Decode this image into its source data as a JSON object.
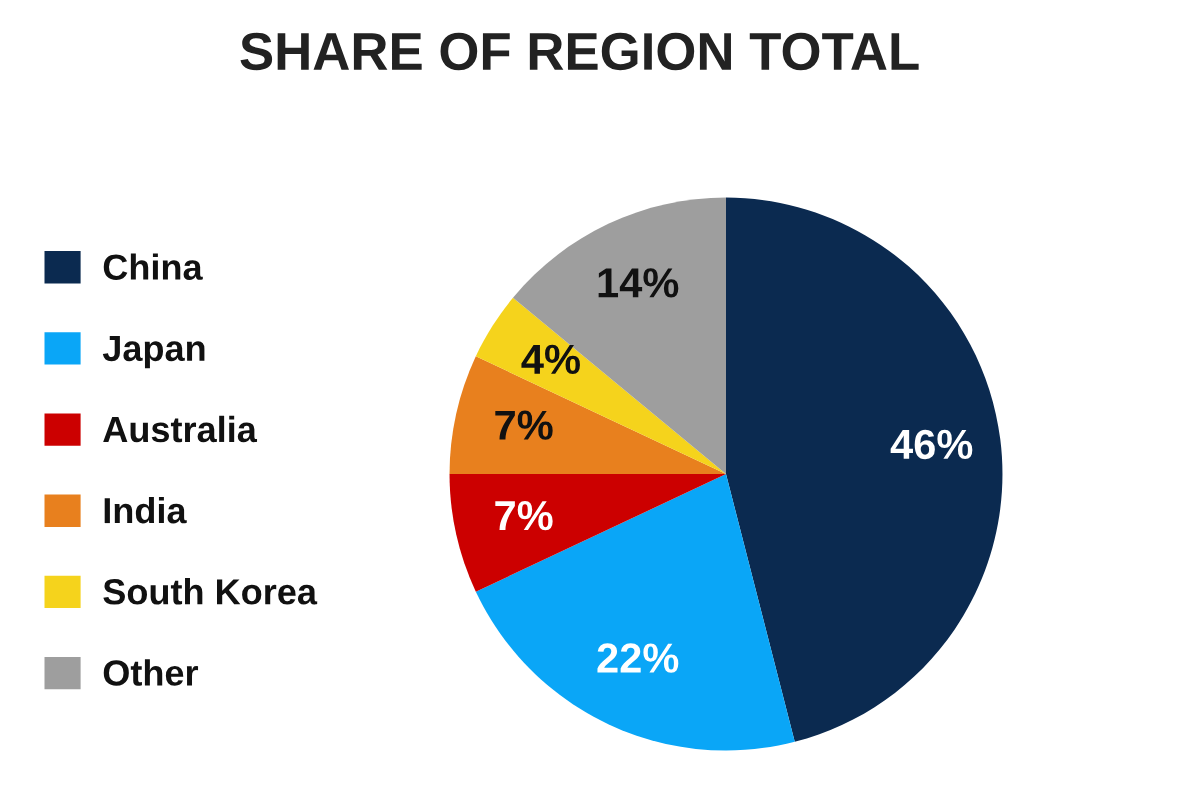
{
  "chart_data": {
    "type": "pie",
    "title": "SHARE OF REGION TOTAL",
    "categories": [
      "China",
      "Japan",
      "Australia",
      "India",
      "South Korea",
      "Other"
    ],
    "values": [
      46,
      22,
      7,
      7,
      4,
      14
    ],
    "colors": [
      "#0b2a50",
      "#0aa6f7",
      "#cc0000",
      "#e8801e",
      "#f5d31c",
      "#9e9e9e"
    ],
    "value_labels": [
      "46%",
      "22%",
      "7%",
      "7%",
      "4%",
      "14%"
    ],
    "legend": "left"
  }
}
